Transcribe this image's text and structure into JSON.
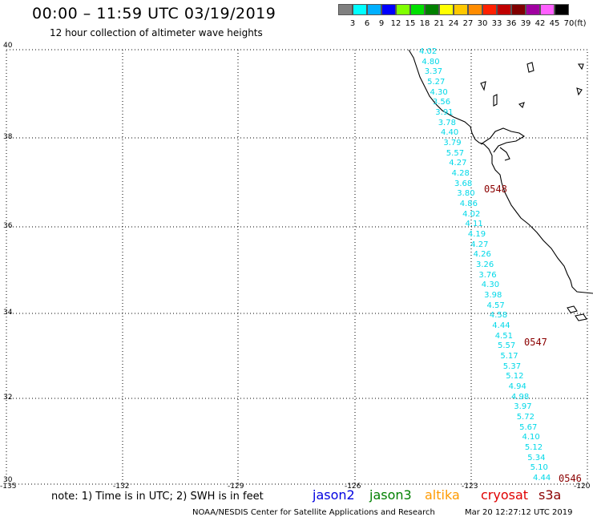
{
  "header": {
    "title": "00:00 – 11:59 UTC 03/19/2019",
    "subtitle": "12 hour collection of altimeter wave heights"
  },
  "legend": {
    "colors": [
      "#808080",
      "#00ffff",
      "#00b0ff",
      "#0000ff",
      "#80ff00",
      "#00e000",
      "#008000",
      "#ffff00",
      "#ffc800",
      "#ff8c00",
      "#ff2000",
      "#c00000",
      "#800000",
      "#a000a0",
      "#ff60ff",
      "#000000"
    ],
    "labels": [
      "3",
      "6",
      "9",
      "12",
      "15",
      "18",
      "21",
      "24",
      "27",
      "30",
      "33",
      "36",
      "39",
      "42",
      "45",
      "70",
      "(ft)"
    ]
  },
  "axes": {
    "lon_ticks": [
      "-135",
      "-132",
      "-129",
      "-126",
      "-123",
      "-120"
    ],
    "lat_ticks": [
      "40",
      "38",
      "36",
      "34",
      "32",
      "30"
    ]
  },
  "track": {
    "color": "#00d8e8",
    "values": [
      "4.02",
      "4.80",
      "3.37",
      "5.27",
      "4.30",
      "3.56",
      "3.91",
      "3.78",
      "4.40",
      "3.79",
      "5.57",
      "4.27",
      "4.28",
      "3.68",
      "3.80",
      "4.86",
      "4.02",
      "4.11",
      "4.19",
      "4.27",
      "4.26",
      "3.26",
      "3.76",
      "4.30",
      "3.98",
      "4.57",
      "4.58",
      "4.44",
      "4.51",
      "5.57",
      "5.17",
      "5.37",
      "5.12",
      "4.94",
      "4.98",
      "3.97",
      "5.72",
      "5.67",
      "4.10",
      "5.12",
      "5.34",
      "5.10",
      "4.44"
    ]
  },
  "pass_labels": [
    "0548",
    "0547",
    "0546"
  ],
  "footer": {
    "note": "note: 1) Time is in UTC; 2) SWH is in feet",
    "satellites": [
      {
        "name": "jason2",
        "color": "#0000e0"
      },
      {
        "name": "jason3",
        "color": "#008000"
      },
      {
        "name": "altika",
        "color": "#ff9a00"
      },
      {
        "name": "cryosat",
        "color": "#e00000"
      },
      {
        "name": "s3a",
        "color": "#8b0000"
      }
    ],
    "credit": "NOAA/NESDIS Center for Satellite Applications and Research",
    "timestamp": "Mar 20 12:27:12 UTC 2019"
  }
}
